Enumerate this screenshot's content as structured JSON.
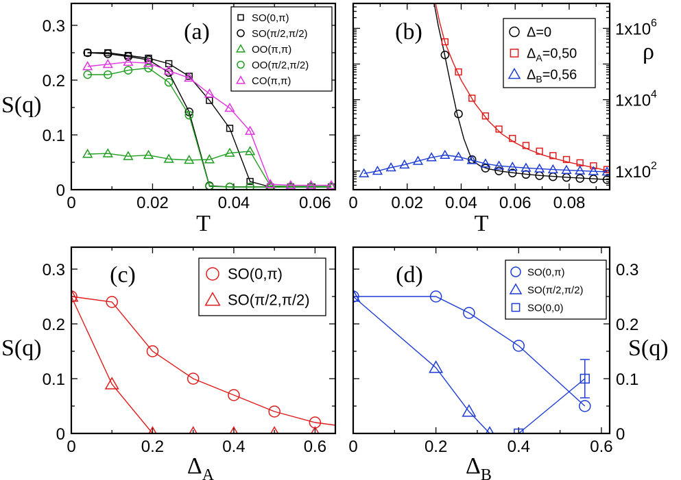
{
  "chart_data": [
    {
      "id": "a",
      "type": "line",
      "panel_label": "(a)",
      "xlabel": "T",
      "ylabel": "S(q)",
      "xlim": [
        0,
        0.065
      ],
      "ylim": [
        0,
        0.34
      ],
      "xticks": [
        0,
        0.02,
        0.04,
        0.06
      ],
      "xticklabels": [
        "0",
        "0.02",
        "0.04",
        "0.06"
      ],
      "yticks": [
        0,
        0.1,
        0.2,
        0.3
      ],
      "yticklabels": [
        "0",
        "0.1",
        "0.2",
        "0.3"
      ],
      "legend_position": "top-right",
      "series": [
        {
          "name": "SO(0,π)",
          "color": "#000000",
          "marker": "square",
          "x": [
            0.004,
            0.009,
            0.014,
            0.019,
            0.024,
            0.029,
            0.034,
            0.039,
            0.044,
            0.049,
            0.054,
            0.059,
            0.064
          ],
          "y": [
            0.25,
            0.25,
            0.245,
            0.24,
            0.23,
            0.207,
            0.163,
            0.112,
            0.015,
            0.005,
            0.005,
            0.005,
            0.005
          ]
        },
        {
          "name": "SO(π/2,π/2)",
          "color": "#000000",
          "marker": "circle",
          "x": [
            0.004,
            0.009,
            0.014,
            0.019,
            0.024,
            0.029,
            0.034,
            0.039,
            0.044,
            0.049,
            0.054,
            0.059,
            0.064
          ],
          "y": [
            0.25,
            0.248,
            0.243,
            0.237,
            0.214,
            0.142,
            0.007,
            0.005,
            0.005,
            0.005,
            0.005,
            0.005,
            0.005
          ]
        },
        {
          "name": "OO(π,π)",
          "color": "#1f9e1f",
          "marker": "triangle",
          "x": [
            0.004,
            0.009,
            0.014,
            0.019,
            0.024,
            0.029,
            0.034,
            0.039,
            0.044,
            0.049,
            0.054,
            0.059,
            0.064
          ],
          "y": [
            0.065,
            0.066,
            0.061,
            0.063,
            0.056,
            0.054,
            0.055,
            0.067,
            0.07,
            0.007,
            0.006,
            0.006,
            0.006
          ]
        },
        {
          "name": "OO(π/2,π/2)",
          "color": "#1f9e1f",
          "marker": "circle",
          "x": [
            0.004,
            0.009,
            0.014,
            0.019,
            0.024,
            0.029,
            0.034,
            0.039,
            0.044,
            0.049,
            0.054,
            0.059,
            0.064
          ],
          "y": [
            0.21,
            0.21,
            0.218,
            0.222,
            0.196,
            0.136,
            0.006,
            0.005,
            0.005,
            0.005,
            0.005,
            0.005,
            0.005
          ]
        },
        {
          "name": "CO(π,π)",
          "color": "#e033e0",
          "marker": "triangle",
          "x": [
            0.004,
            0.009,
            0.014,
            0.019,
            0.024,
            0.029,
            0.034,
            0.039,
            0.044,
            0.049,
            0.054,
            0.059,
            0.064
          ],
          "y": [
            0.225,
            0.229,
            0.233,
            0.231,
            0.217,
            0.204,
            0.175,
            0.149,
            0.107,
            0.01,
            0.008,
            0.008,
            0.008
          ]
        }
      ]
    },
    {
      "id": "b",
      "type": "line",
      "panel_label": "(b)",
      "xlabel": "T",
      "ylabel": "ρ",
      "yscale": "log",
      "xlim": [
        0,
        0.095
      ],
      "ylim": [
        30,
        5000000
      ],
      "xticks": [
        0,
        0.02,
        0.04,
        0.06,
        0.08
      ],
      "xticklabels": [
        "0",
        "0.02",
        "0.04",
        "0.06",
        "0.08"
      ],
      "yticks": [
        {
          "value": 100,
          "mant": "1x10",
          "exp": "2"
        },
        {
          "value": 10000,
          "mant": "1x10",
          "exp": "4"
        },
        {
          "value": 1000000,
          "mant": "1x10",
          "exp": "6"
        }
      ],
      "legend_position": "top-right",
      "series": [
        {
          "name": "Δ=0",
          "sym": "Δ",
          "sub": "",
          "val": "=0",
          "color": "#000000",
          "marker": "circle",
          "curve_x": [
            0.03,
            0.0315,
            0.0335,
            0.036,
            0.0385,
            0.041,
            0.044,
            0.047,
            0.05,
            0.055,
            0.06,
            0.065,
            0.07,
            0.075,
            0.08,
            0.085,
            0.09,
            0.095
          ],
          "curve_y": [
            5000000,
            1200000,
            250000,
            30000,
            4000,
            800,
            200,
            140,
            115,
            98,
            88,
            80,
            74,
            70,
            66,
            63,
            60,
            57
          ],
          "x": [
            0.034,
            0.039,
            0.044,
            0.049,
            0.054,
            0.059,
            0.064,
            0.069,
            0.074,
            0.079,
            0.084,
            0.089,
            0.094
          ],
          "y": [
            180000,
            4000,
            210,
            120,
            100,
            88,
            80,
            74,
            69,
            66,
            62,
            60,
            57
          ]
        },
        {
          "name": "ΔA=0,50",
          "sym": "Δ",
          "sub": "A",
          "val": "=0,50",
          "color": "#e01b1b",
          "marker": "square",
          "curve_x": [
            0.0305,
            0.032,
            0.034,
            0.037,
            0.04,
            0.045,
            0.05,
            0.055,
            0.06,
            0.065,
            0.07,
            0.075,
            0.08,
            0.085,
            0.09,
            0.095
          ],
          "curve_y": [
            5000000,
            1500000,
            400000,
            110000,
            35000,
            8000,
            2600,
            1100,
            620,
            400,
            285,
            220,
            175,
            145,
            120,
            100
          ],
          "x": [
            0.034,
            0.039,
            0.044,
            0.049,
            0.054,
            0.059,
            0.064,
            0.069,
            0.074,
            0.079,
            0.084,
            0.089,
            0.094
          ],
          "y": [
            420000,
            60000,
            11000,
            3500,
            1500,
            820,
            520,
            360,
            270,
            210,
            170,
            140,
            110
          ]
        },
        {
          "name": "ΔB=0,56",
          "sym": "Δ",
          "sub": "B",
          "val": "=0,56",
          "color": "#1c3bd6",
          "marker": "triangle",
          "curve_x": [
            0.004,
            0.009,
            0.014,
            0.019,
            0.024,
            0.029,
            0.034,
            0.039,
            0.044,
            0.049,
            0.054,
            0.059,
            0.064,
            0.069,
            0.074,
            0.079,
            0.084,
            0.089,
            0.094
          ],
          "curve_y": [
            85,
            100,
            125,
            150,
            190,
            240,
            280,
            250,
            200,
            160,
            140,
            130,
            122,
            116,
            110,
            106,
            102,
            98,
            95
          ],
          "x": [
            0.004,
            0.009,
            0.014,
            0.019,
            0.024,
            0.029,
            0.034,
            0.039,
            0.044,
            0.049,
            0.054,
            0.059,
            0.064,
            0.069,
            0.074,
            0.079,
            0.084,
            0.089,
            0.094
          ],
          "y": [
            85,
            100,
            125,
            150,
            190,
            240,
            280,
            250,
            200,
            160,
            140,
            130,
            122,
            116,
            110,
            106,
            102,
            98,
            95
          ]
        }
      ]
    },
    {
      "id": "c",
      "type": "line",
      "panel_label": "(c)",
      "xlabel_sym": "Δ",
      "xlabel_sub": "A",
      "ylabel": "S(q)",
      "xlim": [
        0,
        0.65
      ],
      "ylim": [
        0,
        0.34
      ],
      "xticks": [
        0,
        0.2,
        0.4,
        0.6
      ],
      "xticklabels": [
        "0",
        "0.2",
        "0.4",
        "0.6"
      ],
      "yticks": [
        0,
        0.1,
        0.2,
        0.3
      ],
      "yticklabels": [
        "0",
        "0.1",
        "0.2",
        "0.3"
      ],
      "legend_position": "top-right",
      "series": [
        {
          "name": "SO(0,π)",
          "color": "#e01b1b",
          "marker": "circle",
          "x": [
            0,
            0.1,
            0.2,
            0.3,
            0.4,
            0.5,
            0.6
          ],
          "y": [
            0.25,
            0.24,
            0.15,
            0.1,
            0.07,
            0.04,
            0.02
          ],
          "line_extend": [
            0.65,
            0.015
          ]
        },
        {
          "name": "SO(π/2,π/2)",
          "color": "#e01b1b",
          "marker": "triangle",
          "x": [
            0,
            0.1,
            0.2,
            0.3,
            0.4,
            0.5,
            0.6
          ],
          "y": [
            0.25,
            0.09,
            0,
            0,
            0,
            0,
            0
          ]
        }
      ]
    },
    {
      "id": "d",
      "type": "line",
      "panel_label": "(d)",
      "xlabel_sym": "Δ",
      "xlabel_sub": "B",
      "ylabel": "S(q)",
      "xlim": [
        0,
        0.62
      ],
      "ylim": [
        0,
        0.34
      ],
      "xticks": [
        0,
        0.2,
        0.4,
        0.6
      ],
      "xticklabels": [
        "0",
        "0.2",
        "0.4",
        "0.6"
      ],
      "yticks": [
        0,
        0.1,
        0.2,
        0.3
      ],
      "yticklabels": [
        "0",
        "0.1",
        "0.2",
        "0.3"
      ],
      "legend_position": "top-right",
      "series": [
        {
          "name": "SO(0,π)",
          "color": "#1c3bd6",
          "marker": "circle",
          "x": [
            0,
            0.2,
            0.28,
            0.4,
            0.56
          ],
          "y": [
            0.25,
            0.25,
            0.22,
            0.16,
            0.05
          ]
        },
        {
          "name": "SO(π/2,π/2)",
          "color": "#1c3bd6",
          "marker": "triangle",
          "x": [
            0,
            0.2,
            0.28,
            0.33
          ],
          "y": [
            0.25,
            0.12,
            0.04,
            0
          ]
        },
        {
          "name": "SO(0,0)",
          "color": "#1c3bd6",
          "marker": "square",
          "x": [
            0.4,
            0.56
          ],
          "y": [
            0,
            0.1
          ],
          "error": [
            0,
            0.035
          ]
        }
      ]
    }
  ]
}
